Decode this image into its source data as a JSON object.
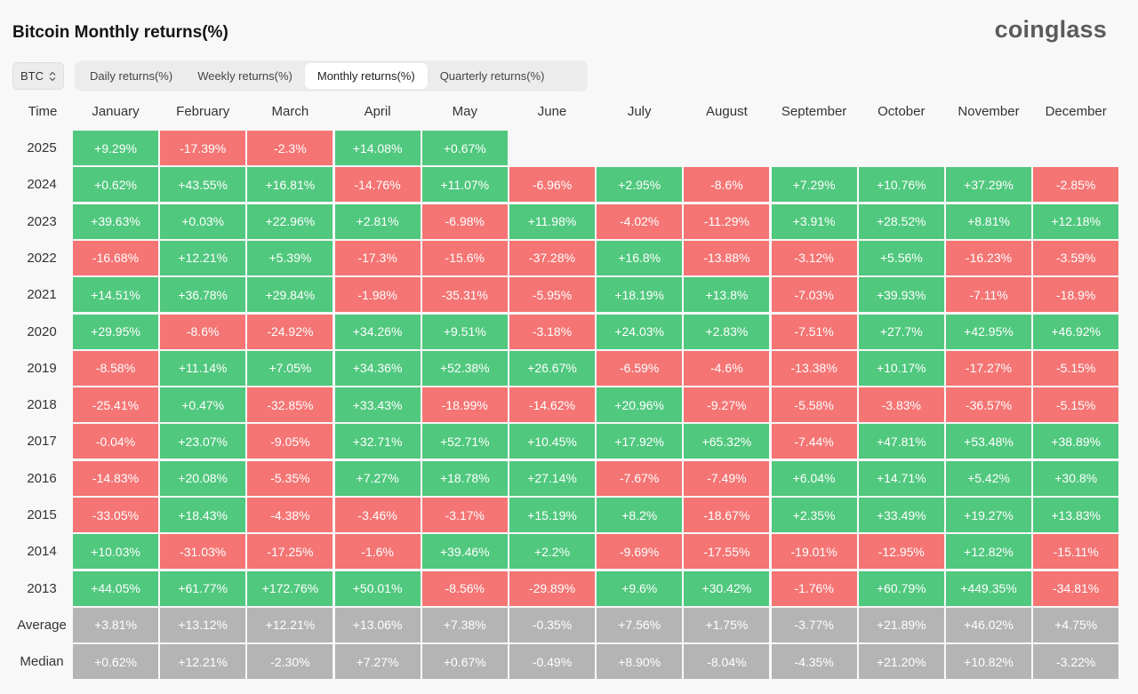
{
  "title": "Bitcoin Monthly returns(%)",
  "logo": "coinglass",
  "asset_select": {
    "value": "BTC",
    "icon": "chevron-updown-icon"
  },
  "tabs": [
    {
      "label": "Daily returns(%)",
      "active": false
    },
    {
      "label": "Weekly returns(%)",
      "active": false
    },
    {
      "label": "Monthly returns(%)",
      "active": true
    },
    {
      "label": "Quarterly returns(%)",
      "active": false
    }
  ],
  "colors": {
    "positive": "#50c87e",
    "negative": "#f47574",
    "summary": "#b4b4b4"
  },
  "chart_data": {
    "type": "table",
    "title": "Bitcoin Monthly returns(%)",
    "corner_label": "Time",
    "columns": [
      "January",
      "February",
      "March",
      "April",
      "May",
      "June",
      "July",
      "August",
      "September",
      "October",
      "November",
      "December"
    ],
    "rows": [
      {
        "label": "2025",
        "values": [
          "+9.29%",
          "-17.39%",
          "-2.3%",
          "+14.08%",
          "+0.67%",
          "",
          "",
          "",
          "",
          "",
          "",
          ""
        ]
      },
      {
        "label": "2024",
        "values": [
          "+0.62%",
          "+43.55%",
          "+16.81%",
          "-14.76%",
          "+11.07%",
          "-6.96%",
          "+2.95%",
          "-8.6%",
          "+7.29%",
          "+10.76%",
          "+37.29%",
          "-2.85%"
        ]
      },
      {
        "label": "2023",
        "values": [
          "+39.63%",
          "+0.03%",
          "+22.96%",
          "+2.81%",
          "-6.98%",
          "+11.98%",
          "-4.02%",
          "-11.29%",
          "+3.91%",
          "+28.52%",
          "+8.81%",
          "+12.18%"
        ]
      },
      {
        "label": "2022",
        "values": [
          "-16.68%",
          "+12.21%",
          "+5.39%",
          "-17.3%",
          "-15.6%",
          "-37.28%",
          "+16.8%",
          "-13.88%",
          "-3.12%",
          "+5.56%",
          "-16.23%",
          "-3.59%"
        ]
      },
      {
        "label": "2021",
        "values": [
          "+14.51%",
          "+36.78%",
          "+29.84%",
          "-1.98%",
          "-35.31%",
          "-5.95%",
          "+18.19%",
          "+13.8%",
          "-7.03%",
          "+39.93%",
          "-7.11%",
          "-18.9%"
        ]
      },
      {
        "label": "2020",
        "values": [
          "+29.95%",
          "-8.6%",
          "-24.92%",
          "+34.26%",
          "+9.51%",
          "-3.18%",
          "+24.03%",
          "+2.83%",
          "-7.51%",
          "+27.7%",
          "+42.95%",
          "+46.92%"
        ]
      },
      {
        "label": "2019",
        "values": [
          "-8.58%",
          "+11.14%",
          "+7.05%",
          "+34.36%",
          "+52.38%",
          "+26.67%",
          "-6.59%",
          "-4.6%",
          "-13.38%",
          "+10.17%",
          "-17.27%",
          "-5.15%"
        ]
      },
      {
        "label": "2018",
        "values": [
          "-25.41%",
          "+0.47%",
          "-32.85%",
          "+33.43%",
          "-18.99%",
          "-14.62%",
          "+20.96%",
          "-9.27%",
          "-5.58%",
          "-3.83%",
          "-36.57%",
          "-5.15%"
        ]
      },
      {
        "label": "2017",
        "values": [
          "-0.04%",
          "+23.07%",
          "-9.05%",
          "+32.71%",
          "+52.71%",
          "+10.45%",
          "+17.92%",
          "+65.32%",
          "-7.44%",
          "+47.81%",
          "+53.48%",
          "+38.89%"
        ]
      },
      {
        "label": "2016",
        "values": [
          "-14.83%",
          "+20.08%",
          "-5.35%",
          "+7.27%",
          "+18.78%",
          "+27.14%",
          "-7.67%",
          "-7.49%",
          "+6.04%",
          "+14.71%",
          "+5.42%",
          "+30.8%"
        ]
      },
      {
        "label": "2015",
        "values": [
          "-33.05%",
          "+18.43%",
          "-4.38%",
          "-3.46%",
          "-3.17%",
          "+15.19%",
          "+8.2%",
          "-18.67%",
          "+2.35%",
          "+33.49%",
          "+19.27%",
          "+13.83%"
        ]
      },
      {
        "label": "2014",
        "values": [
          "+10.03%",
          "-31.03%",
          "-17.25%",
          "-1.6%",
          "+39.46%",
          "+2.2%",
          "-9.69%",
          "-17.55%",
          "-19.01%",
          "-12.95%",
          "+12.82%",
          "-15.11%"
        ]
      },
      {
        "label": "2013",
        "values": [
          "+44.05%",
          "+61.77%",
          "+172.76%",
          "+50.01%",
          "-8.56%",
          "-29.89%",
          "+9.6%",
          "+30.42%",
          "-1.76%",
          "+60.79%",
          "+449.35%",
          "-34.81%"
        ]
      }
    ],
    "summary_rows": [
      {
        "label": "Average",
        "values": [
          "+3.81%",
          "+13.12%",
          "+12.21%",
          "+13.06%",
          "+7.38%",
          "-0.35%",
          "+7.56%",
          "+1.75%",
          "-3.77%",
          "+21.89%",
          "+46.02%",
          "+4.75%"
        ]
      },
      {
        "label": "Median",
        "values": [
          "+0.62%",
          "+12.21%",
          "-2.30%",
          "+7.27%",
          "+0.67%",
          "-0.49%",
          "+8.90%",
          "-8.04%",
          "-4.35%",
          "+21.20%",
          "+10.82%",
          "-3.22%"
        ]
      }
    ]
  }
}
